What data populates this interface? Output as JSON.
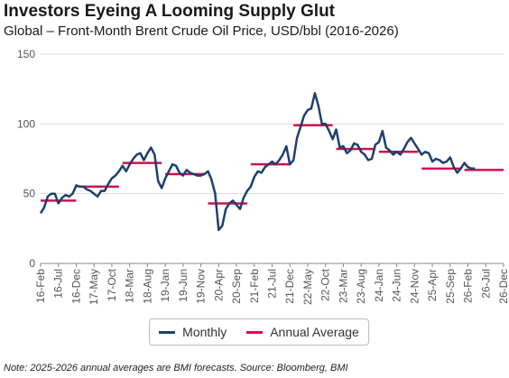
{
  "title": "Investors Eyeing A Looming Supply Glut",
  "subtitle": "Global – Front-Month Brent Crude Oil Price, USD/bbl (2016-2026)",
  "note": "Note: 2025-2026 annual averages are BMI forecasts. Source: Bloomberg, BMI",
  "colors": {
    "monthly": "#1f3f6e",
    "annual": "#d0104c",
    "grid": "#d9d9d9",
    "axis": "#888888",
    "text": "#555555"
  },
  "chart_data": {
    "type": "line",
    "x_tick_labels": [
      "16-Feb",
      "16-Jul",
      "16-Dec",
      "17-May",
      "17-Oct",
      "18-Mar",
      "18-Aug",
      "19-Jan",
      "19-Jun",
      "19-Nov",
      "20-Apr",
      "20-Sep",
      "21-Feb",
      "21-Jul",
      "21-Dec",
      "22-May",
      "22-Oct",
      "23-Mar",
      "23-Aug",
      "24-Jan",
      "24-Jun",
      "24-Nov",
      "25-Apr",
      "25-Sep",
      "26-Feb",
      "26-Jul",
      "26-Dec"
    ],
    "ylim": [
      0,
      150
    ],
    "yticks": [
      0,
      50,
      100,
      150
    ],
    "grid": "horizontal",
    "legend_position": "bottom",
    "series": [
      {
        "name": "Monthly",
        "start": "2016-02",
        "values": [
          36,
          40,
          48,
          50,
          50,
          43,
          47,
          49,
          48,
          50,
          56,
          55,
          55,
          53,
          52,
          50,
          48,
          52,
          52,
          57,
          61,
          63,
          66,
          70,
          66,
          71,
          75,
          78,
          79,
          74,
          79,
          83,
          78,
          59,
          54,
          61,
          66,
          71,
          70,
          65,
          63,
          67,
          65,
          64,
          63,
          63,
          64,
          66,
          60,
          50,
          24,
          27,
          39,
          43,
          45,
          42,
          39,
          47,
          52,
          55,
          62,
          66,
          65,
          69,
          71,
          73,
          71,
          74,
          78,
          84,
          71,
          74,
          90,
          98,
          106,
          110,
          111,
          122,
          113,
          100,
          100,
          95,
          89,
          96,
          83,
          84,
          79,
          81,
          86,
          85,
          80,
          78,
          74,
          75,
          85,
          87,
          95,
          83,
          81,
          78,
          80,
          78,
          82,
          87,
          90,
          86,
          82,
          78,
          80,
          79,
          73,
          75,
          74,
          72,
          73,
          76,
          69,
          65,
          68,
          72,
          69,
          68,
          68
        ]
      },
      {
        "name": "Annual Average",
        "segments": [
          {
            "year": "2016",
            "value": 45
          },
          {
            "year": "2017",
            "value": 55
          },
          {
            "year": "2018",
            "value": 72
          },
          {
            "year": "2019",
            "value": 64
          },
          {
            "year": "2020",
            "value": 43
          },
          {
            "year": "2021",
            "value": 71
          },
          {
            "year": "2022",
            "value": 99
          },
          {
            "year": "2023",
            "value": 82
          },
          {
            "year": "2024",
            "value": 80
          },
          {
            "year": "2025",
            "value": 68
          },
          {
            "year": "2026",
            "value": 67
          }
        ]
      }
    ]
  },
  "legend": {
    "monthly_label": "Monthly",
    "annual_label": "Annual Average"
  }
}
